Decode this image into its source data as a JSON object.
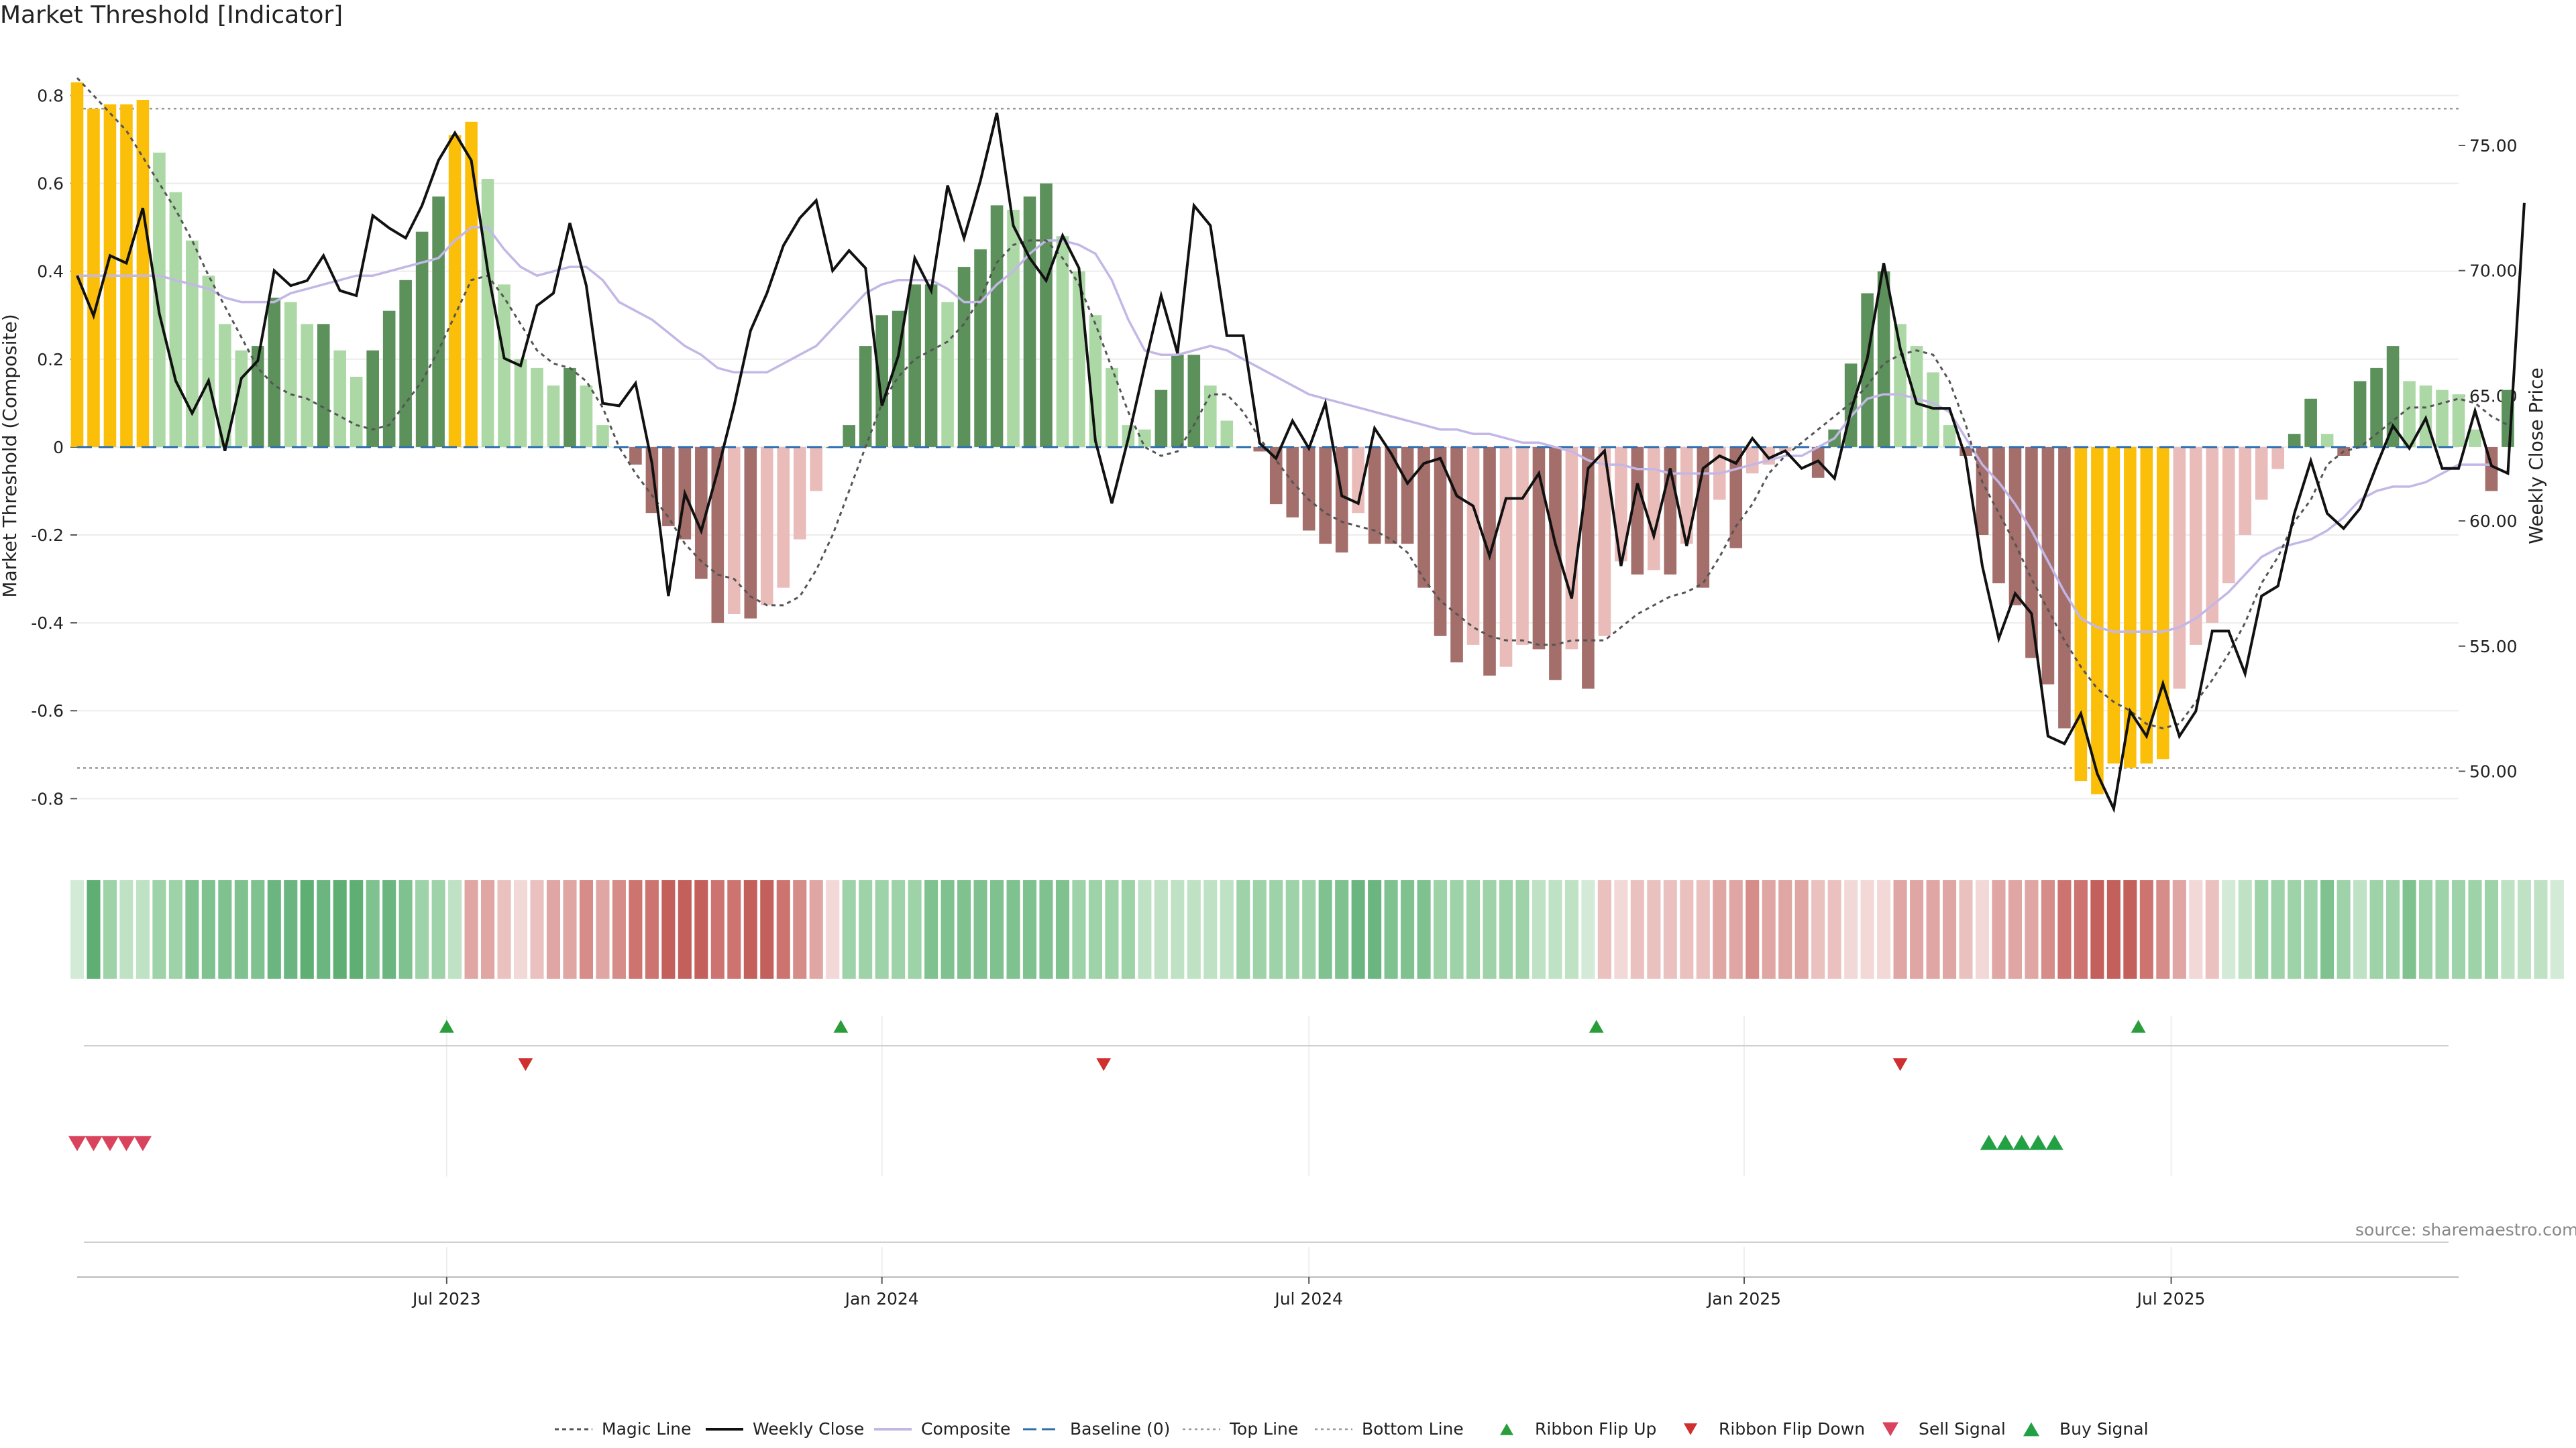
{
  "chart_data": {
    "type": "bar",
    "title": "Market Threshold [Indicator]",
    "ylabel": "Market Threshold (Composite)",
    "y2label": "Weekly Close Price",
    "ylim": [
      -0.92,
      0.88
    ],
    "y2lim": [
      46.8,
      78.4
    ],
    "xlim_week": [
      0,
      145
    ],
    "yticks": [
      "0.8",
      "0.6",
      "0.4",
      "0.2",
      "0",
      "-0.2",
      "-0.4",
      "-0.6",
      "-0.8"
    ],
    "y2ticks": [
      "75.00",
      "70.00",
      "65.00",
      "60.00",
      "55.00",
      "50.00"
    ],
    "xticks": [
      {
        "week": 22.5,
        "label": "Jul 2023"
      },
      {
        "week": 49,
        "label": "Jan 2024"
      },
      {
        "week": 75,
        "label": "Jul 2024"
      },
      {
        "week": 101.5,
        "label": "Jan 2025"
      },
      {
        "week": 127.5,
        "label": "Jul 2025"
      }
    ],
    "top_line": 0.77,
    "bottom_line": -0.73,
    "composite": [
      0.83,
      0.77,
      0.78,
      0.78,
      0.79,
      0.67,
      0.58,
      0.47,
      0.39,
      0.28,
      0.22,
      0.23,
      0.34,
      0.33,
      0.28,
      0.28,
      0.22,
      0.16,
      0.22,
      0.31,
      0.38,
      0.49,
      0.57,
      0.71,
      0.74,
      0.61,
      0.37,
      0.2,
      0.18,
      0.14,
      0.18,
      0.14,
      0.05,
      0.0,
      -0.04,
      -0.15,
      -0.18,
      -0.21,
      -0.3,
      -0.4,
      -0.38,
      -0.39,
      -0.36,
      -0.32,
      -0.21,
      -0.1,
      0.0,
      0.05,
      0.23,
      0.3,
      0.31,
      0.37,
      0.37,
      0.33,
      0.41,
      0.45,
      0.55,
      0.54,
      0.57,
      0.6,
      0.48,
      0.4,
      0.3,
      0.18,
      0.05,
      0.04,
      0.13,
      0.21,
      0.21,
      0.14,
      0.06,
      0.0,
      -0.01,
      -0.13,
      -0.16,
      -0.19,
      -0.22,
      -0.24,
      -0.15,
      -0.22,
      -0.22,
      -0.22,
      -0.32,
      -0.43,
      -0.49,
      -0.45,
      -0.52,
      -0.5,
      -0.45,
      -0.46,
      -0.53,
      -0.46,
      -0.55,
      -0.43,
      -0.26,
      -0.29,
      -0.28,
      -0.29,
      -0.22,
      -0.32,
      -0.12,
      -0.23,
      -0.06,
      -0.04,
      -0.01,
      0.0,
      -0.07,
      0.04,
      0.19,
      0.35,
      0.4,
      0.28,
      0.23,
      0.17,
      0.05,
      -0.02,
      -0.2,
      -0.31,
      -0.36,
      -0.48,
      -0.54,
      -0.64,
      -0.76,
      -0.79,
      -0.72,
      -0.73,
      -0.72,
      -0.71,
      -0.55,
      -0.45,
      -0.4,
      -0.31,
      -0.2,
      -0.12,
      -0.05,
      0.03,
      0.11,
      0.03,
      -0.02,
      0.15,
      0.18,
      0.23,
      0.15,
      0.14,
      0.13,
      0.12,
      0.04,
      -0.1,
      0.13
    ],
    "magic_line": [
      0.84,
      0.8,
      0.76,
      0.72,
      0.66,
      0.6,
      0.54,
      0.47,
      0.39,
      0.32,
      0.25,
      0.18,
      0.14,
      0.12,
      0.11,
      0.09,
      0.07,
      0.05,
      0.04,
      0.05,
      0.1,
      0.15,
      0.22,
      0.3,
      0.38,
      0.39,
      0.34,
      0.28,
      0.22,
      0.19,
      0.18,
      0.15,
      0.09,
      0.0,
      -0.06,
      -0.11,
      -0.16,
      -0.22,
      -0.26,
      -0.29,
      -0.3,
      -0.34,
      -0.36,
      -0.36,
      -0.34,
      -0.28,
      -0.2,
      -0.1,
      0.0,
      0.1,
      0.16,
      0.2,
      0.22,
      0.24,
      0.28,
      0.34,
      0.42,
      0.46,
      0.47,
      0.47,
      0.43,
      0.37,
      0.28,
      0.18,
      0.08,
      0.0,
      -0.02,
      -0.01,
      0.05,
      0.12,
      0.12,
      0.08,
      0.02,
      -0.03,
      -0.08,
      -0.12,
      -0.15,
      -0.17,
      -0.18,
      -0.19,
      -0.21,
      -0.24,
      -0.3,
      -0.35,
      -0.38,
      -0.41,
      -0.43,
      -0.44,
      -0.44,
      -0.45,
      -0.45,
      -0.44,
      -0.44,
      -0.44,
      -0.41,
      -0.38,
      -0.36,
      -0.34,
      -0.33,
      -0.31,
      -0.25,
      -0.18,
      -0.13,
      -0.06,
      -0.02,
      0.01,
      0.04,
      0.07,
      0.1,
      0.14,
      0.19,
      0.21,
      0.22,
      0.21,
      0.15,
      0.05,
      -0.08,
      -0.15,
      -0.22,
      -0.3,
      -0.37,
      -0.44,
      -0.5,
      -0.55,
      -0.58,
      -0.6,
      -0.63,
      -0.64,
      -0.63,
      -0.58,
      -0.53,
      -0.47,
      -0.4,
      -0.31,
      -0.25,
      -0.17,
      -0.12,
      -0.04,
      -0.01,
      0.0,
      0.03,
      0.06,
      0.09,
      0.09,
      0.1,
      0.11,
      0.1,
      0.07,
      0.05
    ],
    "composite_line": [
      0.39,
      0.39,
      0.39,
      0.39,
      0.39,
      0.39,
      0.38,
      0.37,
      0.36,
      0.34,
      0.33,
      0.33,
      0.33,
      0.35,
      0.36,
      0.37,
      0.38,
      0.39,
      0.39,
      0.4,
      0.41,
      0.42,
      0.43,
      0.47,
      0.5,
      0.5,
      0.45,
      0.41,
      0.39,
      0.4,
      0.41,
      0.41,
      0.38,
      0.33,
      0.31,
      0.29,
      0.26,
      0.23,
      0.21,
      0.18,
      0.17,
      0.17,
      0.17,
      0.19,
      0.21,
      0.23,
      0.27,
      0.31,
      0.35,
      0.37,
      0.38,
      0.38,
      0.38,
      0.36,
      0.33,
      0.33,
      0.37,
      0.4,
      0.44,
      0.47,
      0.47,
      0.46,
      0.44,
      0.38,
      0.29,
      0.22,
      0.21,
      0.21,
      0.22,
      0.23,
      0.22,
      0.2,
      0.18,
      0.16,
      0.14,
      0.12,
      0.11,
      0.1,
      0.09,
      0.08,
      0.07,
      0.06,
      0.05,
      0.04,
      0.04,
      0.03,
      0.03,
      0.02,
      0.01,
      0.01,
      0.0,
      -0.01,
      -0.03,
      -0.04,
      -0.04,
      -0.05,
      -0.05,
      -0.06,
      -0.06,
      -0.06,
      -0.06,
      -0.05,
      -0.04,
      -0.03,
      -0.02,
      -0.02,
      0.0,
      0.02,
      0.07,
      0.11,
      0.12,
      0.12,
      0.11,
      0.1,
      0.08,
      0.02,
      -0.04,
      -0.08,
      -0.13,
      -0.19,
      -0.26,
      -0.33,
      -0.39,
      -0.41,
      -0.42,
      -0.42,
      -0.42,
      -0.42,
      -0.41,
      -0.39,
      -0.36,
      -0.33,
      -0.29,
      -0.25,
      -0.23,
      -0.22,
      -0.21,
      -0.19,
      -0.16,
      -0.12,
      -0.1,
      -0.09,
      -0.09,
      -0.08,
      -0.06,
      -0.04,
      -0.04,
      -0.04
    ],
    "weekly_close": [
      69.8,
      68.2,
      70.6,
      70.3,
      72.5,
      68.3,
      65.6,
      64.3,
      65.6,
      62.8,
      65.7,
      66.4,
      70.0,
      69.4,
      69.6,
      70.6,
      69.2,
      69.0,
      72.2,
      71.7,
      71.3,
      72.6,
      74.4,
      75.5,
      74.4,
      70.0,
      66.5,
      66.2,
      68.6,
      69.1,
      71.9,
      69.4,
      64.7,
      64.6,
      65.5,
      62.3,
      57.0,
      61.1,
      59.6,
      62.0,
      64.6,
      67.6,
      69.1,
      71.0,
      72.1,
      72.8,
      70.0,
      70.8,
      70.1,
      64.6,
      66.6,
      70.5,
      69.2,
      73.4,
      71.3,
      73.6,
      76.3,
      71.8,
      70.5,
      69.6,
      71.4,
      70.1,
      63.2,
      60.7,
      63.3,
      66.2,
      69.0,
      66.7,
      72.6,
      71.8,
      67.4,
      67.4,
      63.1,
      62.5,
      64.0,
      62.9,
      64.7,
      61.0,
      60.7,
      63.7,
      62.7,
      61.5,
      62.3,
      62.5,
      61.0,
      60.6,
      58.6,
      60.9,
      60.9,
      61.9,
      59.1,
      56.9,
      62.1,
      62.8,
      58.2,
      61.5,
      59.4,
      62.1,
      59.0,
      62.1,
      62.6,
      62.3,
      63.3,
      62.5,
      62.8,
      62.1,
      62.4,
      61.7,
      64.4,
      66.5,
      70.3,
      66.9,
      64.7,
      64.5,
      64.5,
      62.5,
      58.2,
      55.3,
      57.1,
      56.3,
      51.4,
      51.1,
      52.3,
      49.9,
      48.5,
      52.4,
      51.4,
      53.5,
      51.4,
      52.4,
      55.6,
      55.6,
      53.9,
      57.0,
      57.4,
      60.3,
      62.4,
      60.3,
      59.7,
      60.5,
      62.2,
      63.8,
      62.9,
      64.1,
      62.1,
      62.1,
      64.4,
      62.2,
      61.9,
      72.7
    ],
    "ribbon_strength": [
      1,
      6,
      3,
      2,
      2,
      3,
      3,
      4,
      4,
      4,
      4,
      4,
      5,
      5,
      6,
      5,
      6,
      6,
      4,
      5,
      4,
      3,
      3,
      2,
      -3,
      -3,
      -2,
      -1,
      -2,
      -3,
      -3,
      -4,
      -3,
      -4,
      -5,
      -5,
      -6,
      -6,
      -6,
      -5,
      -5,
      -6,
      -6,
      -5,
      -4,
      -3,
      -1,
      3,
      3,
      3,
      3,
      3,
      4,
      4,
      4,
      4,
      4,
      4,
      4,
      4,
      4,
      3,
      3,
      3,
      3,
      2,
      2,
      2,
      2,
      2,
      2,
      3,
      3,
      3,
      3,
      3,
      4,
      4,
      5,
      5,
      4,
      4,
      4,
      3,
      3,
      3,
      3,
      3,
      3,
      2,
      2,
      2,
      1,
      -2,
      -1,
      -2,
      -2,
      -2,
      -2,
      -2,
      -3,
      -3,
      -4,
      -3,
      -3,
      -3,
      -2,
      -2,
      -1,
      -1,
      -1,
      -3,
      -3,
      -3,
      -3,
      -2,
      -1,
      -3,
      -3,
      -3,
      -4,
      -5,
      -5,
      -6,
      -6,
      -6,
      -5,
      -4,
      -3,
      -1,
      -2,
      1,
      2,
      3,
      3,
      3,
      3,
      4,
      3,
      2,
      3,
      3,
      4,
      3,
      3,
      3,
      3,
      3,
      2,
      2,
      2,
      1
    ],
    "ribbon_flip_up": [
      22.5,
      46.5,
      92.5,
      125.5
    ],
    "ribbon_flip_down": [
      27.3,
      62.5,
      111
    ],
    "sell_signal": [
      0,
      1,
      2,
      3,
      4
    ],
    "buy_signal": [
      116.4,
      117.4,
      118.4,
      119.4,
      120.4
    ],
    "legend": [
      "Magic Line",
      "Weekly Close",
      "Composite",
      "Baseline (0)",
      "Top Line",
      "Bottom Line",
      "Ribbon Flip Up",
      "Ribbon Flip Down",
      "Sell Signal",
      "Buy Signal"
    ],
    "grid": true,
    "legend_position": "bottom-center"
  },
  "source": "source: sharemaestro.com",
  "colors": {
    "extreme": "#fbbf0a",
    "pos_strong": "#5c915c",
    "pos_light": "#acd8a6",
    "neg_strong": "#a46e6b",
    "neg_light": "#eabcb9",
    "composite_line": "#c3b7e6",
    "close_line": "#111111",
    "magic_line": "#555555",
    "flip_up": "#2a9d3b",
    "flip_down": "#cf2f2f",
    "sell": "#d9435d",
    "buy": "#23a044"
  }
}
